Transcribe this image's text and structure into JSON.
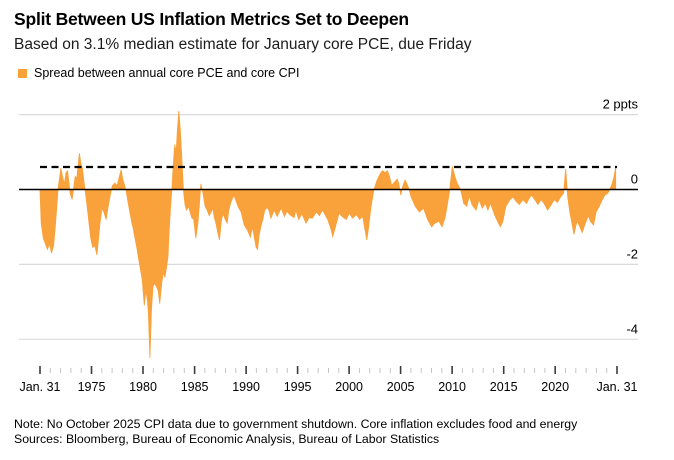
{
  "header": {
    "title": "Split Between US Inflation Metrics Set to Deepen",
    "subtitle": "Based on 3.1% median estimate for January core PCE, due Friday"
  },
  "legend": {
    "label": "Spread between annual core PCE and core CPI"
  },
  "footer": {
    "note": "Note: No October 2025 CPI data due to government shutdown. Core inflation excludes food and energy",
    "sources": "Sources: Bloomberg, Bureau of Economic Analysis, Bureau of Labor Statistics"
  },
  "colors": {
    "accent": "#F9A13B",
    "gridline": "#DBDBDB",
    "zero_line": "#000000",
    "reference_line": "#000000",
    "tick_minor": "#C4C4C4",
    "tick_major": "#3C3C3C",
    "text": "#000000"
  },
  "chart_data": {
    "type": "area",
    "title": "Split Between US Inflation Metrics Set to Deepen",
    "subtitle": "Based on 3.1% median estimate for January core PCE, due Friday",
    "series_name": "Spread between annual core PCE and core CPI",
    "unit": "ppts",
    "grid": true,
    "legend_position": "top-left",
    "y_axis": {
      "ticks": [
        2,
        0,
        -2,
        -4
      ],
      "tick_labels": [
        "2 ppts",
        "0",
        "-2",
        "-4"
      ],
      "range": [
        -5.2,
        2.7
      ]
    },
    "x_axis": {
      "labels": [
        "Jan. 31",
        "1975",
        "1980",
        "1985",
        "1990",
        "1995",
        "2000",
        "2005",
        "2010",
        "2015",
        "2020",
        "Jan. 31"
      ],
      "label_years": [
        1970,
        1975,
        1980,
        1985,
        1990,
        1995,
        2000,
        2005,
        2010,
        2015,
        2020,
        2026
      ],
      "start_year": 1970.08,
      "end_year": 2026.08,
      "minor_tick_every_years": 1
    },
    "reference_line": {
      "value": 0.6,
      "style": "dashed"
    },
    "points": [
      [
        1970.08,
        -0.05
      ],
      [
        1970.2,
        -0.9
      ],
      [
        1970.4,
        -1.3
      ],
      [
        1970.6,
        -1.45
      ],
      [
        1970.8,
        -1.6
      ],
      [
        1971.0,
        -1.45
      ],
      [
        1971.2,
        -1.7
      ],
      [
        1971.4,
        -1.5
      ],
      [
        1971.55,
        -1.05
      ],
      [
        1971.7,
        -0.5
      ],
      [
        1971.85,
        0.05
      ],
      [
        1972.0,
        0.35
      ],
      [
        1972.1,
        0.57
      ],
      [
        1972.3,
        0.3
      ],
      [
        1972.45,
        0.15
      ],
      [
        1972.6,
        0.45
      ],
      [
        1972.75,
        0.5
      ],
      [
        1972.9,
        0.15
      ],
      [
        1973.0,
        -0.1
      ],
      [
        1973.2,
        -0.27
      ],
      [
        1973.35,
        0.05
      ],
      [
        1973.5,
        0.35
      ],
      [
        1973.65,
        0.3
      ],
      [
        1973.9,
        0.97
      ],
      [
        1974.05,
        0.7
      ],
      [
        1974.2,
        0.55
      ],
      [
        1974.35,
        0.2
      ],
      [
        1974.5,
        -0.1
      ],
      [
        1974.65,
        -0.45
      ],
      [
        1974.8,
        -0.8
      ],
      [
        1975.0,
        -1.3
      ],
      [
        1975.2,
        -1.55
      ],
      [
        1975.4,
        -1.5
      ],
      [
        1975.6,
        -1.75
      ],
      [
        1975.75,
        -1.35
      ],
      [
        1975.9,
        -0.9
      ],
      [
        1976.1,
        -0.5
      ],
      [
        1976.3,
        -0.62
      ],
      [
        1976.5,
        -0.8
      ],
      [
        1976.7,
        -0.45
      ],
      [
        1976.9,
        -0.15
      ],
      [
        1977.1,
        0.1
      ],
      [
        1977.35,
        0.17
      ],
      [
        1977.55,
        0.1
      ],
      [
        1977.7,
        0.25
      ],
      [
        1977.95,
        0.53
      ],
      [
        1978.1,
        0.3
      ],
      [
        1978.3,
        0.1
      ],
      [
        1978.45,
        -0.05
      ],
      [
        1978.6,
        -0.3
      ],
      [
        1978.8,
        -0.6
      ],
      [
        1979.0,
        -0.9
      ],
      [
        1979.1,
        -1.0
      ],
      [
        1979.3,
        -1.3
      ],
      [
        1979.5,
        -1.6
      ],
      [
        1979.65,
        -1.85
      ],
      [
        1979.8,
        -2.1
      ],
      [
        1980.0,
        -2.4
      ],
      [
        1980.2,
        -3.1
      ],
      [
        1980.35,
        -2.7
      ],
      [
        1980.5,
        -2.95
      ],
      [
        1980.6,
        -3.3
      ],
      [
        1980.75,
        -4.5
      ],
      [
        1980.9,
        -3.2
      ],
      [
        1981.05,
        -2.6
      ],
      [
        1981.2,
        -2.5
      ],
      [
        1981.4,
        -2.6
      ],
      [
        1981.55,
        -2.7
      ],
      [
        1981.7,
        -3.05
      ],
      [
        1981.9,
        -2.5
      ],
      [
        1982.05,
        -2.2
      ],
      [
        1982.2,
        -2.35
      ],
      [
        1982.35,
        -2.1
      ],
      [
        1982.5,
        -1.8
      ],
      [
        1982.6,
        -1.2
      ],
      [
        1982.75,
        -0.5
      ],
      [
        1982.9,
        0.1
      ],
      [
        1983.0,
        0.6
      ],
      [
        1983.15,
        1.2
      ],
      [
        1983.3,
        1.0
      ],
      [
        1983.4,
        1.5
      ],
      [
        1983.55,
        2.1
      ],
      [
        1983.7,
        1.6
      ],
      [
        1983.85,
        0.8
      ],
      [
        1984.0,
        0.0
      ],
      [
        1984.15,
        -0.4
      ],
      [
        1984.3,
        -0.55
      ],
      [
        1984.5,
        -0.45
      ],
      [
        1984.65,
        -0.6
      ],
      [
        1984.8,
        -0.75
      ],
      [
        1985.0,
        -0.8
      ],
      [
        1985.2,
        -1.3
      ],
      [
        1985.4,
        -0.9
      ],
      [
        1985.55,
        -0.4
      ],
      [
        1985.7,
        0.15
      ],
      [
        1985.9,
        -0.1
      ],
      [
        1986.1,
        -0.45
      ],
      [
        1986.3,
        -0.55
      ],
      [
        1986.5,
        -0.7
      ],
      [
        1986.7,
        -0.6
      ],
      [
        1986.85,
        -0.5
      ],
      [
        1987.0,
        -0.75
      ],
      [
        1987.15,
        -0.9
      ],
      [
        1987.3,
        -1.1
      ],
      [
        1987.5,
        -1.35
      ],
      [
        1987.7,
        -0.8
      ],
      [
        1987.85,
        -0.65
      ],
      [
        1988.05,
        -0.8
      ],
      [
        1988.25,
        -0.9
      ],
      [
        1988.4,
        -0.55
      ],
      [
        1988.6,
        -0.35
      ],
      [
        1988.9,
        -0.15
      ],
      [
        1989.1,
        -0.3
      ],
      [
        1989.3,
        -0.45
      ],
      [
        1989.6,
        -0.6
      ],
      [
        1989.9,
        -0.95
      ],
      [
        1990.2,
        -1.08
      ],
      [
        1990.5,
        -1.27
      ],
      [
        1990.7,
        -1.0
      ],
      [
        1991.05,
        -1.55
      ],
      [
        1991.2,
        -1.6
      ],
      [
        1991.35,
        -1.2
      ],
      [
        1991.55,
        -0.95
      ],
      [
        1991.7,
        -0.8
      ],
      [
        1991.9,
        -0.55
      ],
      [
        1992.1,
        -0.48
      ],
      [
        1992.3,
        -0.55
      ],
      [
        1992.5,
        -0.77
      ],
      [
        1992.8,
        -0.55
      ],
      [
        1993.1,
        -0.72
      ],
      [
        1993.3,
        -0.6
      ],
      [
        1993.5,
        -0.5
      ],
      [
        1993.8,
        -0.72
      ],
      [
        1994.05,
        -0.58
      ],
      [
        1994.25,
        -0.65
      ],
      [
        1994.45,
        -0.7
      ],
      [
        1994.75,
        -0.75
      ],
      [
        1994.9,
        -0.55
      ],
      [
        1995.2,
        -0.8
      ],
      [
        1995.5,
        -0.65
      ],
      [
        1995.9,
        -0.9
      ],
      [
        1996.2,
        -0.75
      ],
      [
        1996.5,
        -0.77
      ],
      [
        1996.9,
        -0.6
      ],
      [
        1997.2,
        -0.7
      ],
      [
        1997.5,
        -0.55
      ],
      [
        1998.0,
        -0.8
      ],
      [
        1998.3,
        -1.05
      ],
      [
        1998.5,
        -1.26
      ],
      [
        1998.8,
        -0.95
      ],
      [
        1999.1,
        -0.63
      ],
      [
        1999.4,
        -0.72
      ],
      [
        1999.8,
        -0.8
      ],
      [
        2000.1,
        -0.63
      ],
      [
        2000.4,
        -0.77
      ],
      [
        2000.8,
        -0.67
      ],
      [
        2001.1,
        -0.8
      ],
      [
        2001.4,
        -0.72
      ],
      [
        2001.8,
        -1.35
      ],
      [
        2001.95,
        -1.05
      ],
      [
        2002.2,
        -0.46
      ],
      [
        2002.5,
        0.0
      ],
      [
        2002.8,
        0.25
      ],
      [
        2003.1,
        0.42
      ],
      [
        2003.3,
        0.5
      ],
      [
        2003.6,
        0.45
      ],
      [
        2003.8,
        0.5
      ],
      [
        2004.0,
        0.35
      ],
      [
        2004.2,
        0.11
      ],
      [
        2004.5,
        0.2
      ],
      [
        2004.75,
        0.28
      ],
      [
        2004.9,
        0.15
      ],
      [
        2005.1,
        -0.15
      ],
      [
        2005.3,
        0.1
      ],
      [
        2005.5,
        0.25
      ],
      [
        2005.7,
        0.15
      ],
      [
        2005.9,
        0.0
      ],
      [
        2006.1,
        -0.2
      ],
      [
        2006.5,
        -0.45
      ],
      [
        2006.9,
        -0.6
      ],
      [
        2007.3,
        -0.5
      ],
      [
        2007.7,
        -0.8
      ],
      [
        2008.1,
        -1.0
      ],
      [
        2008.4,
        -0.9
      ],
      [
        2008.8,
        -0.85
      ],
      [
        2009.1,
        -1.0
      ],
      [
        2009.4,
        -0.75
      ],
      [
        2009.8,
        -0.1
      ],
      [
        2010.1,
        0.62
      ],
      [
        2010.4,
        0.3
      ],
      [
        2010.6,
        0.15
      ],
      [
        2010.9,
        0.0
      ],
      [
        2011.2,
        -0.37
      ],
      [
        2011.5,
        -0.45
      ],
      [
        2011.75,
        -0.17
      ],
      [
        2012.0,
        -0.4
      ],
      [
        2012.4,
        -0.55
      ],
      [
        2012.7,
        -0.27
      ],
      [
        2013.0,
        -0.5
      ],
      [
        2013.3,
        -0.37
      ],
      [
        2013.55,
        -0.55
      ],
      [
        2013.8,
        -0.37
      ],
      [
        2014.2,
        -0.68
      ],
      [
        2014.5,
        -0.86
      ],
      [
        2014.75,
        -1.0
      ],
      [
        2015.0,
        -0.86
      ],
      [
        2015.3,
        -0.45
      ],
      [
        2015.7,
        -0.27
      ],
      [
        2016.0,
        -0.2
      ],
      [
        2016.3,
        -0.32
      ],
      [
        2016.6,
        -0.4
      ],
      [
        2016.95,
        -0.27
      ],
      [
        2017.3,
        -0.37
      ],
      [
        2017.55,
        -0.24
      ],
      [
        2017.8,
        -0.15
      ],
      [
        2018.1,
        -0.27
      ],
      [
        2018.4,
        -0.4
      ],
      [
        2018.7,
        -0.27
      ],
      [
        2019.0,
        -0.37
      ],
      [
        2019.35,
        -0.55
      ],
      [
        2019.7,
        -0.4
      ],
      [
        2020.0,
        -0.27
      ],
      [
        2020.3,
        -0.35
      ],
      [
        2020.6,
        -0.2
      ],
      [
        2020.9,
        -0.1
      ],
      [
        2021.1,
        0.55
      ],
      [
        2021.3,
        -0.2
      ],
      [
        2021.5,
        -0.6
      ],
      [
        2021.7,
        -0.9
      ],
      [
        2021.9,
        -1.2
      ],
      [
        2022.2,
        -0.85
      ],
      [
        2022.4,
        -0.95
      ],
      [
        2022.7,
        -1.15
      ],
      [
        2023.0,
        -0.9
      ],
      [
        2023.3,
        -0.7
      ],
      [
        2023.5,
        -0.85
      ],
      [
        2023.8,
        -0.95
      ],
      [
        2024.05,
        -0.6
      ],
      [
        2024.35,
        -0.45
      ],
      [
        2024.6,
        -0.3
      ],
      [
        2024.9,
        -0.15
      ],
      [
        2025.2,
        -0.1
      ],
      [
        2025.45,
        0.05
      ],
      [
        2025.6,
        0.15
      ],
      [
        2025.8,
        0.35
      ],
      [
        2025.95,
        0.6
      ]
    ]
  }
}
